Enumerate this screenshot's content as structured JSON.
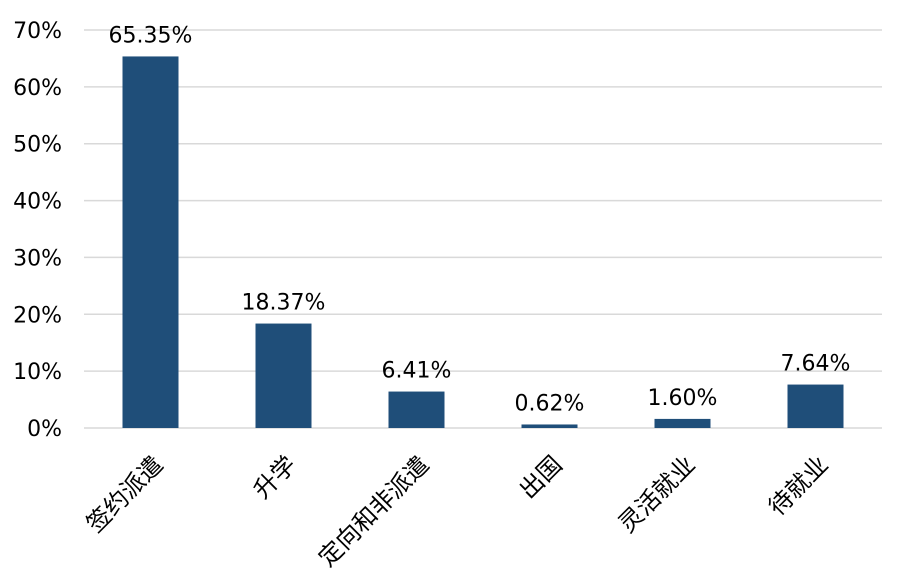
{
  "chart_data": {
    "type": "bar",
    "categories": [
      "签约派遣",
      "升学",
      "定向和非派遣",
      "出国",
      "灵活就业",
      "待就业"
    ],
    "values": [
      65.35,
      18.37,
      6.41,
      0.62,
      1.6,
      7.64
    ],
    "data_labels": [
      "65.35%",
      "18.37%",
      "6.41%",
      "0.62%",
      "1.60%",
      "7.64%"
    ],
    "y_ticks": [
      0,
      10,
      20,
      30,
      40,
      50,
      60,
      70
    ],
    "y_tick_labels": [
      "0%",
      "10%",
      "20%",
      "30%",
      "40%",
      "50%",
      "60%",
      "70%"
    ],
    "ylim": [
      0,
      70
    ],
    "grid": true,
    "legend": "none",
    "bar_color": "#1f4e79"
  }
}
